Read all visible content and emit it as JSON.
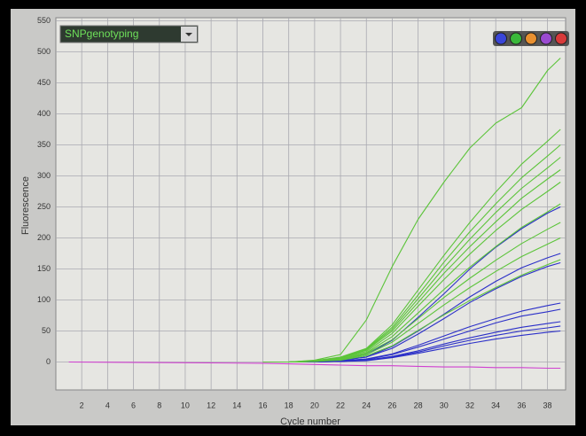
{
  "chart_data": {
    "type": "line",
    "title": "SNPgenotyping",
    "xlabel": "Cycle number",
    "ylabel": "Fluorescence",
    "x": [
      1,
      16,
      18,
      20,
      22,
      24,
      26,
      28,
      30,
      32,
      34,
      36,
      38,
      39
    ],
    "series": [
      {
        "color": "#d040d0",
        "values": [
          0,
          -2,
          -3,
          -4,
          -5,
          -6,
          -6,
          -7,
          -8,
          -8,
          -9,
          -9,
          -10,
          -10
        ]
      },
      {
        "color": "#2b2fc8",
        "values": [
          null,
          0,
          0,
          1,
          4,
          12,
          35,
          72,
          110,
          150,
          185,
          215,
          240,
          250
        ]
      },
      {
        "color": "#2b2fc8",
        "values": [
          null,
          0,
          0,
          1,
          3,
          8,
          25,
          50,
          77,
          105,
          130,
          152,
          168,
          175
        ]
      },
      {
        "color": "#2b2fc8",
        "values": [
          null,
          0,
          0,
          1,
          3,
          8,
          22,
          45,
          70,
          96,
          118,
          138,
          154,
          160
        ]
      },
      {
        "color": "#2b2fc8",
        "values": [
          null,
          0,
          0,
          0,
          2,
          5,
          13,
          27,
          42,
          57,
          70,
          82,
          91,
          95
        ]
      },
      {
        "color": "#2b2fc8",
        "values": [
          null,
          0,
          0,
          0,
          2,
          4,
          12,
          24,
          37,
          50,
          63,
          74,
          81,
          85
        ]
      },
      {
        "color": "#2b2fc8",
        "values": [
          null,
          0,
          0,
          0,
          1,
          3,
          9,
          18,
          29,
          39,
          48,
          56,
          62,
          65
        ]
      },
      {
        "color": "#2b2fc8",
        "values": [
          null,
          0,
          0,
          0,
          1,
          3,
          8,
          16,
          26,
          35,
          43,
          50,
          55,
          58
        ]
      },
      {
        "color": "#2b2fc8",
        "values": [
          null,
          0,
          0,
          0,
          1,
          2,
          7,
          14,
          22,
          30,
          37,
          43,
          48,
          50
        ]
      },
      {
        "color": "#5cc43a",
        "values": [
          null,
          0,
          0,
          3,
          12,
          68,
          154,
          230,
          290,
          345,
          385,
          410,
          470,
          490
        ]
      },
      {
        "color": "#5cc43a",
        "values": [
          null,
          0,
          0,
          2,
          8,
          22,
          60,
          116,
          172,
          225,
          274,
          319,
          356,
          375
        ]
      },
      {
        "color": "#5cc43a",
        "values": [
          null,
          0,
          0,
          2,
          7,
          21,
          56,
          108,
          161,
          210,
          255,
          297,
          332,
          350
        ]
      },
      {
        "color": "#5cc43a",
        "values": [
          null,
          0,
          0,
          2,
          7,
          20,
          53,
          102,
          152,
          198,
          241,
          280,
          313,
          330
        ]
      },
      {
        "color": "#5cc43a",
        "values": [
          null,
          0,
          0,
          2,
          6,
          19,
          50,
          96,
          143,
          186,
          226,
          264,
          295,
          310
        ]
      },
      {
        "color": "#5cc43a",
        "values": [
          null,
          0,
          0,
          1,
          6,
          17,
          46,
          90,
          133,
          174,
          212,
          246,
          275,
          290
        ]
      },
      {
        "color": "#5cc43a",
        "values": [
          null,
          0,
          0,
          1,
          5,
          15,
          41,
          79,
          117,
          153,
          186,
          217,
          242,
          255
        ]
      },
      {
        "color": "#5cc43a",
        "values": [
          null,
          0,
          0,
          1,
          4,
          14,
          36,
          70,
          104,
          135,
          164,
          191,
          214,
          225
        ]
      },
      {
        "color": "#5cc43a",
        "values": [
          null,
          0,
          0,
          1,
          4,
          12,
          32,
          62,
          92,
          120,
          146,
          170,
          190,
          200
        ]
      },
      {
        "color": "#5cc43a",
        "values": [
          null,
          0,
          0,
          1,
          3,
          10,
          26,
          51,
          76,
          99,
          120,
          140,
          157,
          165
        ]
      }
    ],
    "xlim": [
      0,
      39.4
    ],
    "ylim": [
      -45,
      555
    ],
    "xticks": [
      2,
      4,
      6,
      8,
      10,
      12,
      14,
      16,
      18,
      20,
      22,
      24,
      26,
      28,
      30,
      32,
      34,
      36,
      38
    ],
    "yticks": [
      0,
      50,
      100,
      150,
      200,
      250,
      300,
      350,
      400,
      450,
      500,
      550
    ],
    "grid": true
  }
}
